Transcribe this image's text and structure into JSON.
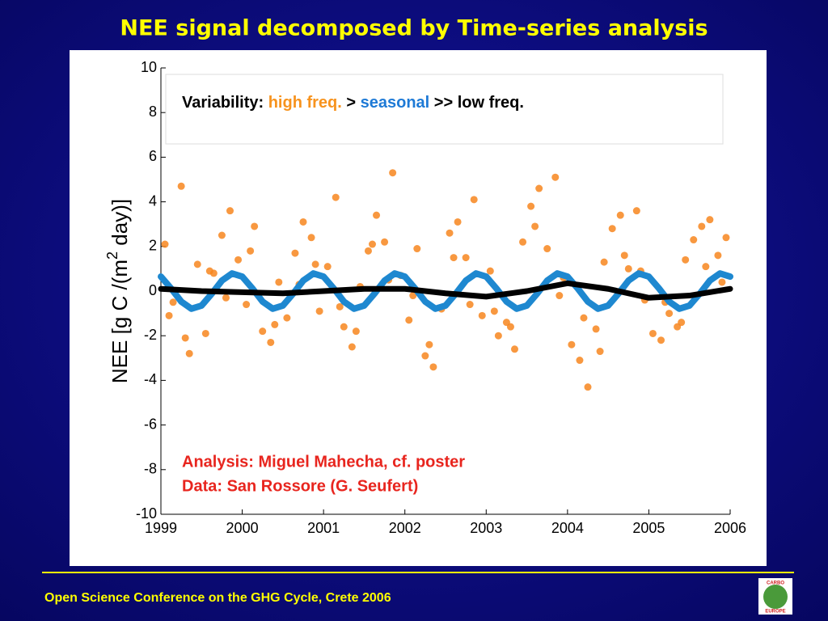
{
  "slide_title": "NEE signal decomposed by Time-series analysis",
  "footer": "Open Science Conference on the GHG Cycle, Crete 2006",
  "logo": {
    "top": "CARBO",
    "bottom": "EUROPE"
  },
  "chart_data": {
    "type": "scatter",
    "ylabel": [
      "NEE [g C /(m",
      "2",
      " day)]"
    ],
    "xlim": [
      1999,
      2006
    ],
    "ylim": [
      -10,
      10
    ],
    "xticks": [
      1999,
      2000,
      2001,
      2002,
      2003,
      2004,
      2005,
      2006
    ],
    "yticks": [
      -10,
      -8,
      -6,
      -4,
      -2,
      0,
      2,
      4,
      6,
      8,
      10
    ],
    "annotation": [
      {
        "text": "Variability: ",
        "color": "#000000"
      },
      {
        "text": "high freq.",
        "color": "#f7931e"
      },
      {
        "text": " > ",
        "color": "#000000"
      },
      {
        "text": "seasonal",
        "color": "#1e7ad6"
      },
      {
        "text": " >> low freq.",
        "color": "#000000"
      }
    ],
    "notes": [
      "Analysis: Miguel Mahecha, cf. poster",
      "Data: San Rossore (G. Seufert)"
    ],
    "notes_color": "#e8251e",
    "series": [
      {
        "type": "scatter",
        "color": "#f7861e",
        "x": [
          1999.05,
          1999.15,
          1999.25,
          1999.35,
          1999.45,
          1999.55,
          1999.65,
          1999.75,
          1999.85,
          1999.95,
          2000.05,
          2000.15,
          2000.25,
          2000.35,
          2000.45,
          2000.55,
          2000.65,
          2000.75,
          2000.85,
          2000.95,
          2001.05,
          2001.15,
          2001.25,
          2001.35,
          2001.45,
          2001.55,
          2001.65,
          2001.75,
          2001.85,
          2001.95,
          2002.05,
          2002.15,
          2002.25,
          2002.35,
          2002.45,
          2002.55,
          2002.65,
          2002.75,
          2002.85,
          2002.95,
          2003.05,
          2003.15,
          2003.25,
          2003.35,
          2003.45,
          2003.55,
          2003.65,
          2003.75,
          2003.85,
          2003.95,
          2004.05,
          2004.15,
          2004.25,
          2004.35,
          2004.45,
          2004.55,
          2004.65,
          2004.75,
          2004.85,
          2004.95,
          2005.05,
          2005.15,
          2005.25,
          2005.35,
          2005.45,
          2005.55,
          2005.65,
          2005.75,
          2005.85,
          2005.95,
          1999.1,
          1999.3,
          1999.6,
          1999.8,
          2000.1,
          2000.4,
          2000.7,
          2000.9,
          2001.2,
          2001.4,
          2001.6,
          2001.8,
          2002.1,
          2002.3,
          2002.6,
          2002.8,
          2003.1,
          2003.3,
          2003.6,
          2003.9,
          2004.2,
          2004.4,
          2004.7,
          2004.9,
          2005.2,
          2005.4,
          2005.7,
          2005.9
        ],
        "values": [
          2.1,
          -0.5,
          4.7,
          -2.8,
          1.2,
          -1.9,
          0.8,
          2.5,
          3.6,
          1.4,
          -0.6,
          2.9,
          -1.8,
          -2.3,
          0.4,
          -1.2,
          1.7,
          3.1,
          2.4,
          -0.9,
          1.1,
          4.2,
          -1.6,
          -2.5,
          0.2,
          1.8,
          3.4,
          2.2,
          5.3,
          0.7,
          -1.3,
          1.9,
          -2.9,
          -3.4,
          -0.8,
          2.6,
          3.1,
          1.5,
          4.1,
          -1.1,
          0.9,
          -2.0,
          -1.4,
          -2.6,
          2.2,
          3.8,
          4.6,
          1.9,
          5.1,
          0.6,
          -2.4,
          -3.1,
          -4.3,
          -1.7,
          1.3,
          2.8,
          3.4,
          1.0,
          3.6,
          -0.4,
          -1.9,
          -2.2,
          -1.0,
          -1.6,
          1.4,
          2.3,
          2.9,
          3.2,
          1.6,
          2.4,
          -1.1,
          -2.1,
          0.9,
          -0.3,
          1.8,
          -1.5,
          0.3,
          1.2,
          -0.7,
          -1.8,
          2.1,
          0.5,
          -0.2,
          -2.4,
          1.5,
          -0.6,
          -0.9,
          -1.6,
          2.9,
          -0.2,
          -1.2,
          -2.7,
          1.6,
          0.9,
          -0.5,
          -1.4,
          1.1,
          0.4
        ]
      },
      {
        "type": "line",
        "color": "#1e88d0",
        "x": [
          1999,
          1999.125,
          1999.25,
          1999.375,
          1999.5,
          1999.625,
          1999.75,
          1999.875,
          2000,
          2000.125,
          2000.25,
          2000.375,
          2000.5,
          2000.625,
          2000.75,
          2000.875,
          2001,
          2001.125,
          2001.25,
          2001.375,
          2001.5,
          2001.625,
          2001.75,
          2001.875,
          2002,
          2002.125,
          2002.25,
          2002.375,
          2002.5,
          2002.625,
          2002.75,
          2002.875,
          2003,
          2003.125,
          2003.25,
          2003.375,
          2003.5,
          2003.625,
          2003.75,
          2003.875,
          2004,
          2004.125,
          2004.25,
          2004.375,
          2004.5,
          2004.625,
          2004.75,
          2004.875,
          2005,
          2005.125,
          2005.25,
          2005.375,
          2005.5,
          2005.625,
          2005.75,
          2005.875,
          2006
        ],
        "values": [
          0.65,
          0.12,
          -0.47,
          -0.79,
          -0.65,
          -0.12,
          0.47,
          0.79,
          0.65,
          0.12,
          -0.47,
          -0.79,
          -0.65,
          -0.12,
          0.47,
          0.79,
          0.65,
          0.12,
          -0.47,
          -0.79,
          -0.65,
          -0.12,
          0.47,
          0.79,
          0.65,
          0.12,
          -0.47,
          -0.79,
          -0.65,
          -0.12,
          0.47,
          0.79,
          0.65,
          0.12,
          -0.47,
          -0.79,
          -0.65,
          -0.12,
          0.47,
          0.79,
          0.65,
          0.12,
          -0.47,
          -0.79,
          -0.65,
          -0.12,
          0.47,
          0.79,
          0.65,
          0.12,
          -0.47,
          -0.79,
          -0.65,
          -0.12,
          0.47,
          0.79,
          0.65
        ]
      },
      {
        "type": "line",
        "color": "#000000",
        "x": [
          1999,
          1999.5,
          2000,
          2000.5,
          2001,
          2001.5,
          2002,
          2002.5,
          2003,
          2003.5,
          2004,
          2004.5,
          2005,
          2005.5,
          2006
        ],
        "values": [
          0.1,
          0.0,
          -0.05,
          -0.1,
          0.0,
          0.1,
          0.1,
          -0.1,
          -0.25,
          0.0,
          0.35,
          0.1,
          -0.3,
          -0.2,
          0.1
        ]
      }
    ]
  }
}
